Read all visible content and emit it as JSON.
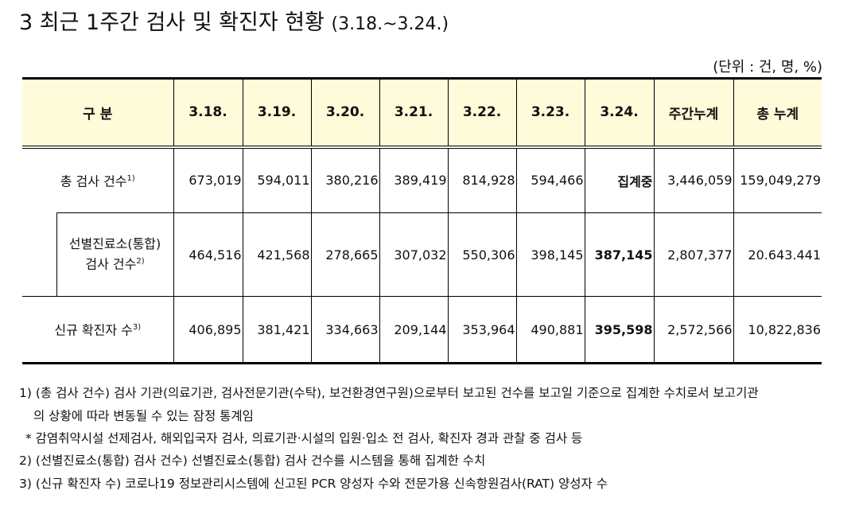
{
  "title": "3  최근 1주간 검사 및 확진자 현황",
  "title_period": "(3.18.~3.24.)",
  "unit": "(단위 : 건, 명, %)",
  "table": {
    "header": [
      "구 분",
      "3.18.",
      "3.19.",
      "3.20.",
      "3.21.",
      "3.22.",
      "3.23.",
      "3.24.",
      "주간누계",
      "총 누계"
    ],
    "rows": [
      {
        "label": [
          "총 검사 건수"
        ],
        "note": "1)",
        "cells": [
          "673,019",
          "594,011",
          "380,216",
          "389,419",
          "814,928",
          "594,466",
          "집계중",
          "3,446,059",
          "159,049,279"
        ]
      },
      {
        "label": [
          "선별진료소(통합)",
          "검사 건수"
        ],
        "note": "2)",
        "cells": [
          "464,516",
          "421,568",
          "278,665",
          "307,032",
          "550,306",
          "398,145",
          "387,145",
          "2,807,377",
          "20.643.441"
        ]
      },
      {
        "label": [
          "신규 확진자 수"
        ],
        "note": "3)",
        "cells": [
          "406,895",
          "381,421",
          "334,663",
          "209,144",
          "353,964",
          "490,881",
          "395,598",
          "2,572,566",
          "10,822,836"
        ]
      }
    ]
  },
  "notes": [
    "1) (총 검사 건수) 검사 기관(의료기관, 검사전문기관(수탁), 보건환경연구원)으로부터 보고된 건수를 보고일 기준으로 집계한 수치로서 보고기관",
    "의 상황에 따라 변동될 수 있는 잠정 통계임",
    "* 감염취약시설 선제검사, 해외입국자 검사, 의료기관·시설의 입원·입소 전 검사, 확진자 경과 관찰 중 검사 등",
    "2) (선별진료소(통합) 검사 건수) 선별진료소(통합) 검사 건수를 시스템을 통해 집계한 수치",
    "3) (신규 확진자 수) 코로나19 정보관리시스템에 신고된 PCR 양성자 수와 전문가용 신속항원검사(RAT) 양성자 수"
  ]
}
